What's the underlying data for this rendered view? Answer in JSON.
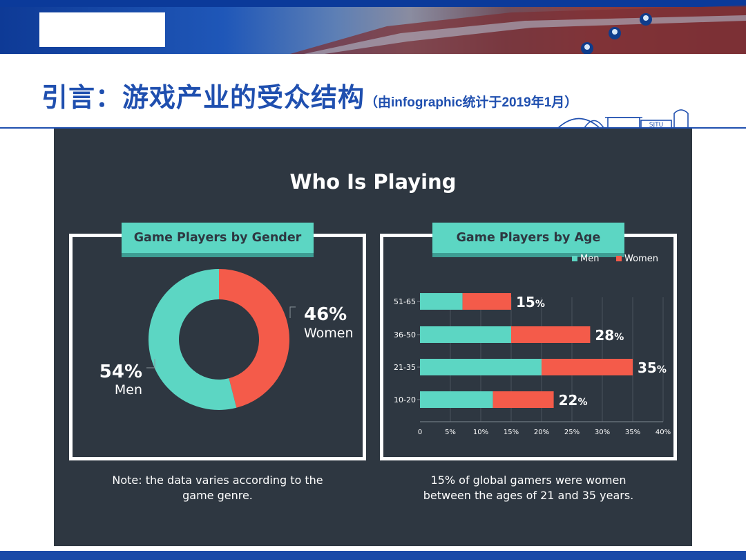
{
  "slide": {
    "title": "引言：游戏产业的受众结构",
    "subtitle": "（由infographic统计于2019年1月）",
    "logo_text": "SJTU"
  },
  "infographic": {
    "title": "Who Is Playing",
    "note_left": "Note: the data varies according to the game genre.",
    "note_right": "15% of global gamers were women between the ages of 21 and 35 years."
  },
  "colors": {
    "men": "#5cd6c3",
    "women": "#f45b4a",
    "background": "#2e3741",
    "accent_blue": "#1f4faf"
  },
  "chart_data": [
    {
      "type": "pie",
      "title": "Game Players by Gender",
      "slices": [
        {
          "label": "Women",
          "value": 46,
          "display": "46%"
        },
        {
          "label": "Men",
          "value": 54,
          "display": "54%"
        }
      ]
    },
    {
      "type": "bar",
      "orientation": "horizontal",
      "stacked": true,
      "title": "Game Players by Age",
      "categories": [
        "51-65",
        "36-50",
        "21-35",
        "10-20"
      ],
      "series": [
        {
          "name": "Men",
          "values": [
            7,
            15,
            20,
            12
          ]
        },
        {
          "name": "Women",
          "values": [
            8,
            13,
            15,
            10
          ]
        }
      ],
      "totals": [
        "15%",
        "28%",
        "35%",
        "22%"
      ],
      "xticks": [
        "0",
        "5%",
        "10%",
        "15%",
        "20%",
        "25%",
        "30%",
        "35%",
        "40%"
      ],
      "xlim": [
        0,
        40
      ],
      "legend_position": "top-right",
      "grid": true
    }
  ]
}
